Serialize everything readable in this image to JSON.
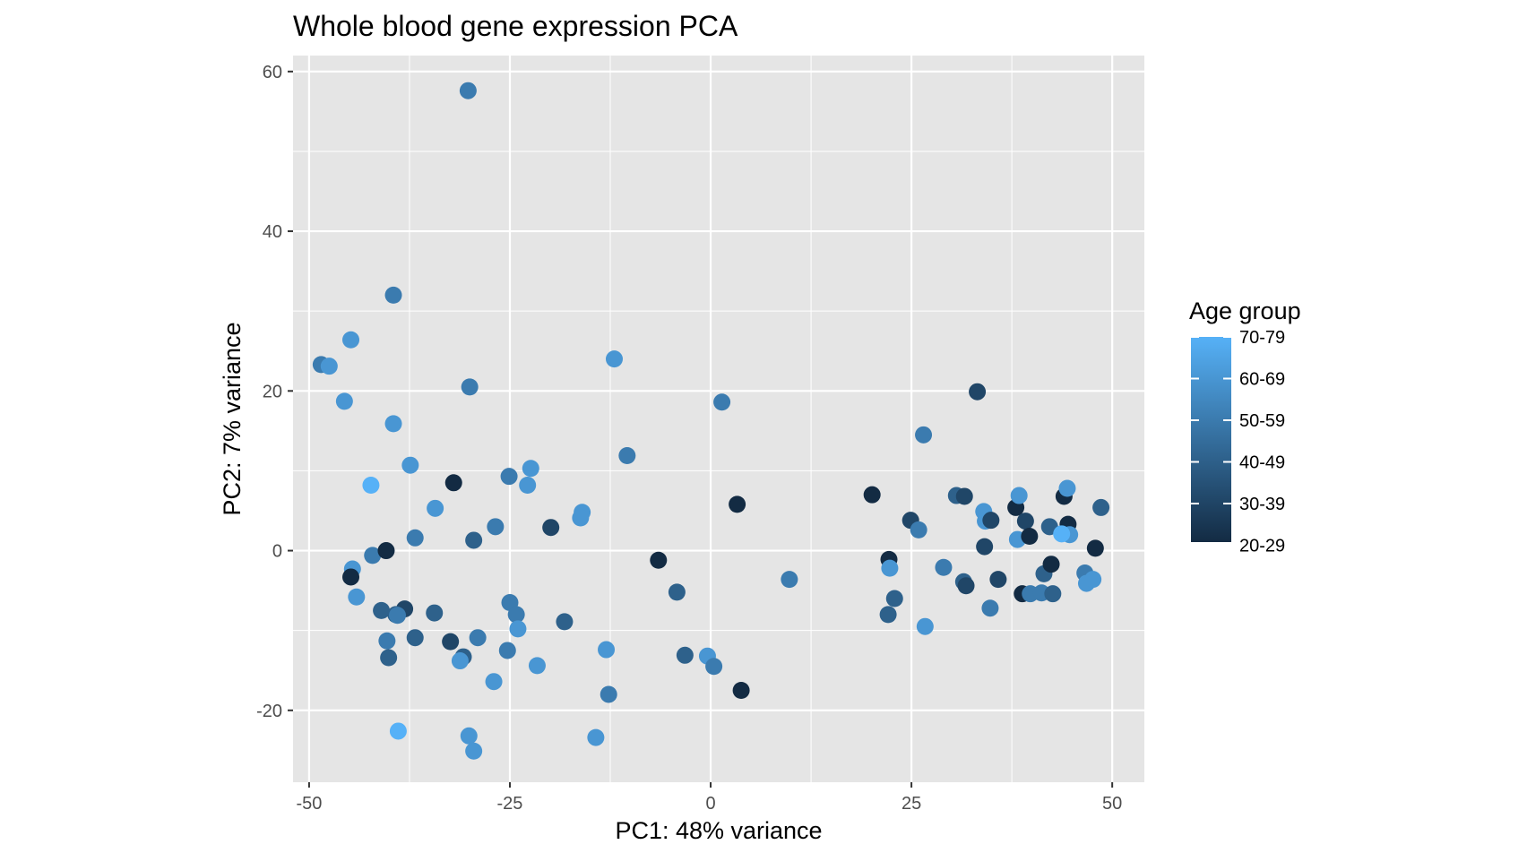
{
  "chart_data": {
    "type": "scatter",
    "title": "Whole blood gene expression PCA",
    "xlabel": "PC1: 48% variance",
    "ylabel": "PC2: 7% variance",
    "xlim": [
      -52,
      54
    ],
    "ylim": [
      -29,
      62
    ],
    "x_ticks": [
      -50,
      -25,
      0,
      25,
      50
    ],
    "x_tick_labels": [
      "-50",
      "-25",
      "0",
      "25",
      "50"
    ],
    "y_ticks": [
      -20,
      0,
      20,
      40,
      60
    ],
    "y_tick_labels": [
      "-20",
      "0",
      "20",
      "40",
      "60"
    ],
    "grid": true,
    "legend": {
      "title": "Age group",
      "placement": "right",
      "labels": [
        "70-79",
        "60-69",
        "50-59",
        "40-49",
        "30-39",
        "20-29"
      ],
      "color_low": "#132B43",
      "color_high": "#56B1F7"
    },
    "colors": {
      "panel_background": "#E5E5E5",
      "grid": "#FFFFFF"
    },
    "points": [
      {
        "x": -30.2,
        "y": 57.6,
        "age_level": 3
      },
      {
        "x": -39.5,
        "y": 32.0,
        "age_level": 3
      },
      {
        "x": -44.8,
        "y": 26.4,
        "age_level": 4
      },
      {
        "x": -12.0,
        "y": 24.0,
        "age_level": 4
      },
      {
        "x": -48.5,
        "y": 23.3,
        "age_level": 3
      },
      {
        "x": -47.5,
        "y": 23.1,
        "age_level": 4
      },
      {
        "x": -45.6,
        "y": 18.7,
        "age_level": 4
      },
      {
        "x": -30.0,
        "y": 20.5,
        "age_level": 3
      },
      {
        "x": 1.4,
        "y": 18.6,
        "age_level": 3
      },
      {
        "x": -39.5,
        "y": 15.9,
        "age_level": 4
      },
      {
        "x": -37.4,
        "y": 10.7,
        "age_level": 4
      },
      {
        "x": -10.4,
        "y": 11.9,
        "age_level": 3
      },
      {
        "x": -22.4,
        "y": 10.3,
        "age_level": 4
      },
      {
        "x": -25.1,
        "y": 9.3,
        "age_level": 3
      },
      {
        "x": -22.8,
        "y": 8.2,
        "age_level": 4
      },
      {
        "x": -42.3,
        "y": 8.2,
        "age_level": 5
      },
      {
        "x": -32.0,
        "y": 8.5,
        "age_level": 0
      },
      {
        "x": -34.3,
        "y": 5.3,
        "age_level": 4
      },
      {
        "x": -16.0,
        "y": 4.8,
        "age_level": 4
      },
      {
        "x": -16.2,
        "y": 4.1,
        "age_level": 4
      },
      {
        "x": -26.8,
        "y": 3.0,
        "age_level": 3
      },
      {
        "x": -19.9,
        "y": 2.9,
        "age_level": 1
      },
      {
        "x": -36.8,
        "y": 1.6,
        "age_level": 3
      },
      {
        "x": -29.5,
        "y": 1.3,
        "age_level": 2
      },
      {
        "x": -42.1,
        "y": -0.6,
        "age_level": 3
      },
      {
        "x": -40.4,
        "y": 0.0,
        "age_level": 0
      },
      {
        "x": -44.6,
        "y": -2.3,
        "age_level": 4
      },
      {
        "x": -44.8,
        "y": -3.3,
        "age_level": 0
      },
      {
        "x": -44.1,
        "y": -5.8,
        "age_level": 4
      },
      {
        "x": -6.5,
        "y": -1.2,
        "age_level": 0
      },
      {
        "x": 3.3,
        "y": 5.8,
        "age_level": 0
      },
      {
        "x": -4.2,
        "y": -5.2,
        "age_level": 2
      },
      {
        "x": 9.8,
        "y": -3.6,
        "age_level": 3
      },
      {
        "x": -25.0,
        "y": -6.5,
        "age_level": 3
      },
      {
        "x": -24.2,
        "y": -8.0,
        "age_level": 3
      },
      {
        "x": -24.0,
        "y": -9.8,
        "age_level": 4
      },
      {
        "x": -18.2,
        "y": -8.9,
        "age_level": 2
      },
      {
        "x": -34.4,
        "y": -7.8,
        "age_level": 2
      },
      {
        "x": -41.0,
        "y": -7.5,
        "age_level": 2
      },
      {
        "x": -38.1,
        "y": -7.3,
        "age_level": 1
      },
      {
        "x": -39.2,
        "y": -8.0,
        "age_level": 2
      },
      {
        "x": -39.0,
        "y": -8.1,
        "age_level": 3
      },
      {
        "x": -36.8,
        "y": -10.9,
        "age_level": 2
      },
      {
        "x": -40.3,
        "y": -11.3,
        "age_level": 3
      },
      {
        "x": -40.1,
        "y": -13.4,
        "age_level": 2
      },
      {
        "x": -32.4,
        "y": -11.4,
        "age_level": 1
      },
      {
        "x": -30.8,
        "y": -13.3,
        "age_level": 2
      },
      {
        "x": -31.2,
        "y": -13.8,
        "age_level": 4
      },
      {
        "x": -29.0,
        "y": -10.9,
        "age_level": 3
      },
      {
        "x": -25.3,
        "y": -12.5,
        "age_level": 3
      },
      {
        "x": -21.6,
        "y": -14.4,
        "age_level": 4
      },
      {
        "x": -27.0,
        "y": -16.4,
        "age_level": 4
      },
      {
        "x": -13.0,
        "y": -12.4,
        "age_level": 4
      },
      {
        "x": -12.7,
        "y": -18.0,
        "age_level": 3
      },
      {
        "x": -3.2,
        "y": -13.1,
        "age_level": 2
      },
      {
        "x": -0.4,
        "y": -13.2,
        "age_level": 4
      },
      {
        "x": 0.4,
        "y": -14.5,
        "age_level": 3
      },
      {
        "x": 3.8,
        "y": -17.5,
        "age_level": 0
      },
      {
        "x": -14.3,
        "y": -23.4,
        "age_level": 4
      },
      {
        "x": -38.9,
        "y": -22.6,
        "age_level": 5
      },
      {
        "x": -30.1,
        "y": -23.2,
        "age_level": 4
      },
      {
        "x": -29.5,
        "y": -25.1,
        "age_level": 4
      },
      {
        "x": 20.1,
        "y": 7.0,
        "age_level": 0
      },
      {
        "x": 33.2,
        "y": 19.9,
        "age_level": 1
      },
      {
        "x": 26.5,
        "y": 14.5,
        "age_level": 3
      },
      {
        "x": 24.9,
        "y": 3.8,
        "age_level": 1
      },
      {
        "x": 25.9,
        "y": 2.6,
        "age_level": 3
      },
      {
        "x": 22.2,
        "y": -1.1,
        "age_level": 0
      },
      {
        "x": 22.3,
        "y": -2.2,
        "age_level": 4
      },
      {
        "x": 22.9,
        "y": -6.0,
        "age_level": 2
      },
      {
        "x": 22.1,
        "y": -8.0,
        "age_level": 2
      },
      {
        "x": 26.7,
        "y": -9.5,
        "age_level": 4
      },
      {
        "x": 29.0,
        "y": -2.1,
        "age_level": 3
      },
      {
        "x": 30.6,
        "y": 6.9,
        "age_level": 2
      },
      {
        "x": 31.6,
        "y": 6.8,
        "age_level": 1
      },
      {
        "x": 31.5,
        "y": -3.9,
        "age_level": 2
      },
      {
        "x": 31.8,
        "y": -4.4,
        "age_level": 1
      },
      {
        "x": 34.0,
        "y": 4.9,
        "age_level": 4
      },
      {
        "x": 34.2,
        "y": 3.7,
        "age_level": 4
      },
      {
        "x": 34.9,
        "y": 3.8,
        "age_level": 1
      },
      {
        "x": 34.1,
        "y": 0.5,
        "age_level": 1
      },
      {
        "x": 35.8,
        "y": -3.6,
        "age_level": 1
      },
      {
        "x": 34.8,
        "y": -7.2,
        "age_level": 3
      },
      {
        "x": 38.0,
        "y": 5.4,
        "age_level": 0
      },
      {
        "x": 38.4,
        "y": 6.9,
        "age_level": 4
      },
      {
        "x": 38.2,
        "y": 1.4,
        "age_level": 4
      },
      {
        "x": 39.2,
        "y": 3.7,
        "age_level": 1
      },
      {
        "x": 39.7,
        "y": 1.8,
        "age_level": 0
      },
      {
        "x": 38.8,
        "y": -5.4,
        "age_level": 0
      },
      {
        "x": 39.8,
        "y": -5.4,
        "age_level": 3
      },
      {
        "x": 41.2,
        "y": -5.3,
        "age_level": 3
      },
      {
        "x": 42.6,
        "y": -5.4,
        "age_level": 2
      },
      {
        "x": 41.5,
        "y": -2.9,
        "age_level": 2
      },
      {
        "x": 42.4,
        "y": -1.7,
        "age_level": 0
      },
      {
        "x": 42.2,
        "y": 3.0,
        "age_level": 2
      },
      {
        "x": 44.0,
        "y": 6.8,
        "age_level": 0
      },
      {
        "x": 44.4,
        "y": 7.8,
        "age_level": 4
      },
      {
        "x": 44.5,
        "y": 3.3,
        "age_level": 0
      },
      {
        "x": 44.7,
        "y": 2.0,
        "age_level": 4
      },
      {
        "x": 43.7,
        "y": 2.1,
        "age_level": 5
      },
      {
        "x": 47.9,
        "y": 0.3,
        "age_level": 0
      },
      {
        "x": 48.6,
        "y": 5.4,
        "age_level": 2
      },
      {
        "x": 46.6,
        "y": -2.8,
        "age_level": 3
      },
      {
        "x": 46.8,
        "y": -4.1,
        "age_level": 4
      },
      {
        "x": 47.6,
        "y": -3.6,
        "age_level": 4
      }
    ]
  }
}
